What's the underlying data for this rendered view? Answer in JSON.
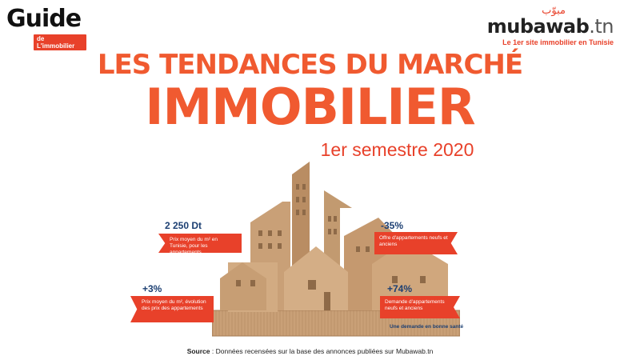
{
  "logos": {
    "guide_word": "Guide",
    "guide_sub": "de L'immobilier",
    "mubawab_arabic": "مبوّب",
    "mubawab_brand": "mubawab",
    "mubawab_tld": ".tn",
    "mubawab_tagline": "Le 1er site immobilier en Tunisie"
  },
  "title": {
    "line1": "LES TENDANCES DU MARCHÉ",
    "line2": "IMMOBILIER",
    "subtitle": "1er semestre 2020"
  },
  "stats": {
    "price_m2": {
      "value": "2 250 Dt",
      "label": "Prix moyen du m² en Tunisie, pour les appartements"
    },
    "evolution": {
      "value": "+3%",
      "label": "Prix moyen du m², évolution des prix des appartements"
    },
    "offer": {
      "value": "-35%",
      "label": "Offre d'appartements neufs et anciens"
    },
    "demand": {
      "value": "+74%",
      "label": "Demande d'appartements neufs et anciens",
      "note": "Une demande en bonne santé"
    }
  },
  "source": {
    "label": "Source",
    "text": " : Données recensées sur la base des annonces  publiées sur Mubawab.tn"
  },
  "colors": {
    "accent": "#f05a30",
    "ribbon": "#e8412a",
    "stat_blue": "#1c3f72",
    "cardboard": "#c9a077"
  }
}
